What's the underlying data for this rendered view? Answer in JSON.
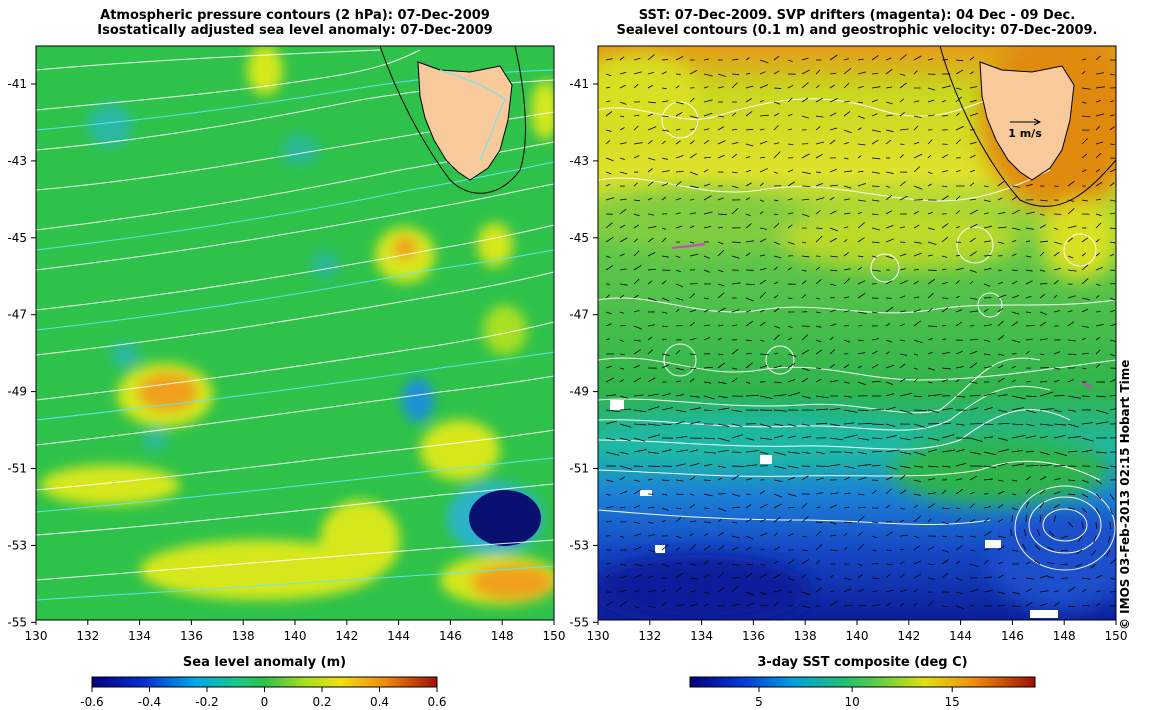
{
  "left_panel": {
    "title_line1": "Atmospheric pressure contours (2 hPa): 07-Dec-2009",
    "title_line2": "Isostatically adjusted sea level anomaly: 07-Dec-2009",
    "colorbar_label": "Sea level anomaly (m)",
    "colorbar_ticks": [
      "-0.6",
      "-0.4",
      "-0.2",
      "0",
      "0.2",
      "0.4",
      "0.6"
    ]
  },
  "right_panel": {
    "title_line1": "SST: 07-Dec-2009. SVP drifters (magenta): 04 Dec - 09 Dec.",
    "title_line2": "Sealevel contours (0.1 m) and geostrophic velocity: 07-Dec-2009.",
    "colorbar_label": "3-day SST composite (deg C)",
    "colorbar_ticks": [
      "5",
      "10",
      "15"
    ],
    "velocity_scale_label": "1 m/s"
  },
  "axes": {
    "lat_ticks": [
      "-41",
      "-43",
      "-45",
      "-47",
      "-49",
      "-51",
      "-53",
      "-55"
    ],
    "lon_ticks": [
      "130",
      "132",
      "134",
      "136",
      "138",
      "140",
      "142",
      "144",
      "146",
      "148",
      "150"
    ]
  },
  "copyright": "© IMOS 03-Feb-2013 02:15 Hobart Time",
  "colors": {
    "sla_green": "#2ec24a",
    "sla_yellow": "#d6e81a",
    "sla_orange": "#f0a01a",
    "sla_cyan": "#29b3c9",
    "sla_navy": "#0a1070",
    "sst_blue": "#1a4fcc",
    "sst_green": "#3ec05a",
    "sst_yellow": "#d8e020",
    "sst_orange": "#e08a10",
    "land": "#f8c99a"
  }
}
